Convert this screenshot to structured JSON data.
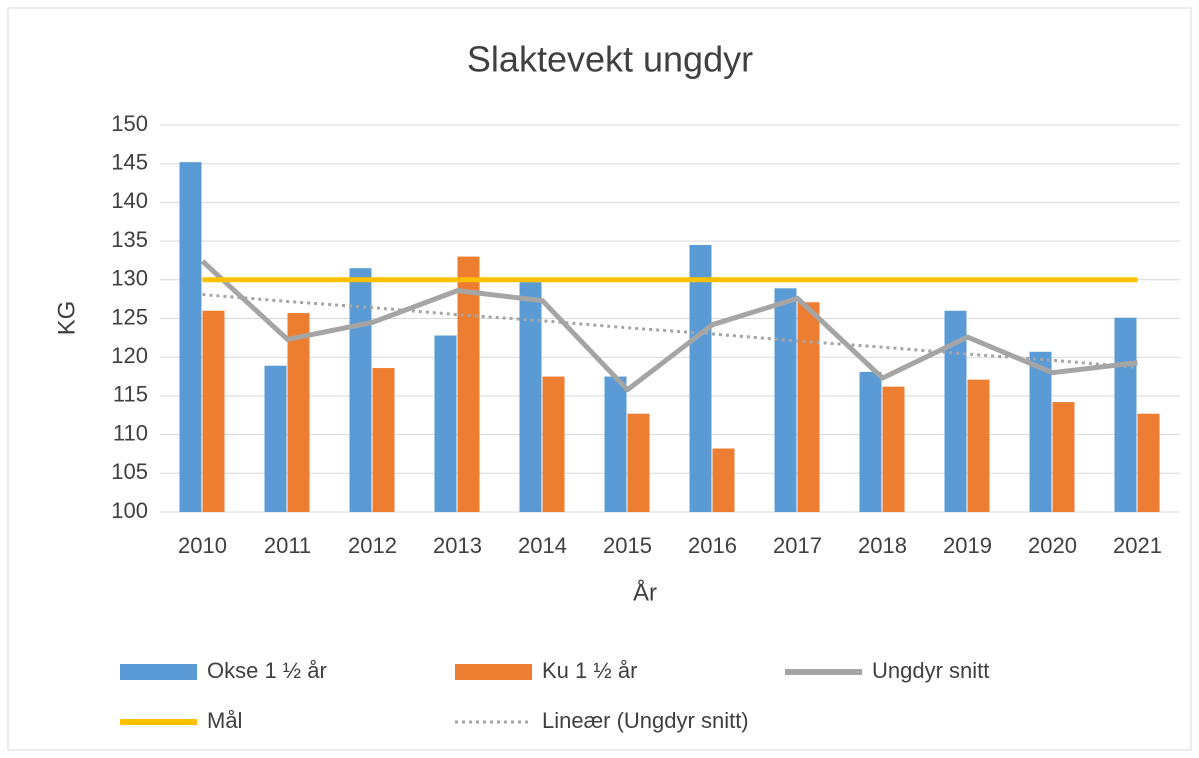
{
  "chart_data": {
    "type": "bar-line",
    "title": "Slaktevekt ungdyr",
    "x_label": "År",
    "y_label": "KG",
    "categories": [
      "2010",
      "2011",
      "2012",
      "2013",
      "2014",
      "2015",
      "2016",
      "2017",
      "2018",
      "2019",
      "2020",
      "2021"
    ],
    "series": [
      {
        "name": "Okse 1 ½ år",
        "color": "#5b9bd5",
        "kind": "bar",
        "values": [
          145.2,
          118.9,
          131.5,
          122.8,
          129.7,
          117.5,
          134.5,
          128.9,
          118.1,
          126,
          120.7,
          125.1
        ]
      },
      {
        "name": "Ku 1 ½ år",
        "color": "#ed7d31",
        "kind": "bar",
        "values": [
          126,
          125.7,
          118.6,
          133,
          117.5,
          112.7,
          108.2,
          127.1,
          116.2,
          117.1,
          114.2,
          112.7
        ]
      },
      {
        "name": "Ungdyr snitt",
        "color": "#a5a5a5",
        "kind": "line",
        "values": [
          132.4,
          122.3,
          124.5,
          128.6,
          127.3,
          115.8,
          124.2,
          127.6,
          117.3,
          122.6,
          118,
          119.3
        ]
      },
      {
        "name": "Mål",
        "color": "#ffc000",
        "kind": "line",
        "values": [
          130,
          130,
          130,
          130,
          130,
          130,
          130,
          130,
          130,
          130,
          130,
          130
        ]
      },
      {
        "name": "Lineær (Ungdyr snitt)",
        "color": "#a5a5a5",
        "kind": "dotted",
        "values": [
          128.1,
          127.2,
          126.4,
          125.5,
          124.7,
          123.8,
          123,
          122.1,
          121.3,
          120.4,
          119.6,
          118.7
        ]
      }
    ],
    "ylim": [
      100,
      150
    ],
    "yticks": [
      100,
      105,
      110,
      115,
      120,
      125,
      130,
      135,
      140,
      145,
      150
    ],
    "grid": true
  }
}
